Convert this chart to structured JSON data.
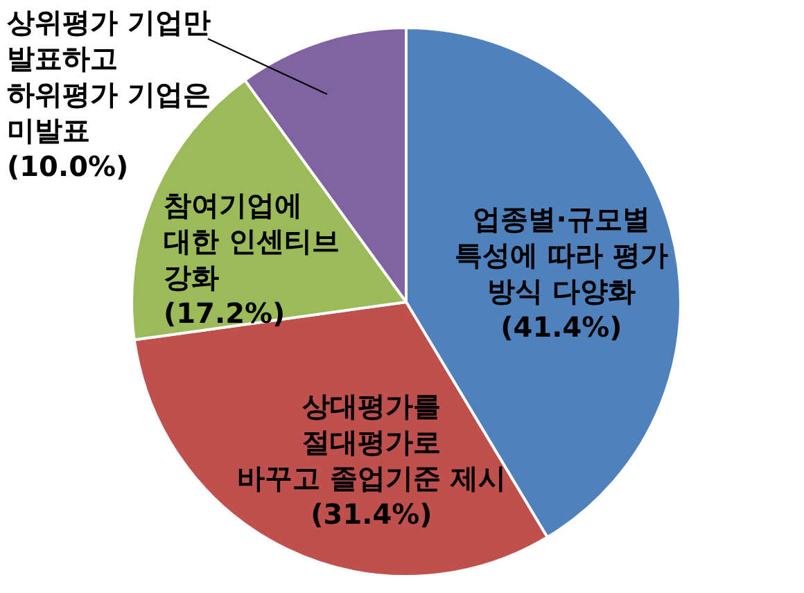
{
  "chart_data": {
    "type": "pie",
    "categories": [
      "업종별·규모별 특성에 따라 평가 방식 다양화",
      "상대평가를 절대평가로 바꾸고 졸업기준 제시",
      "참여기업에 대한 인센티브 강화",
      "상위평가 기업만 발표하고 하위평가 기업은 미발표"
    ],
    "values": [
      41.4,
      31.4,
      17.2,
      10.0
    ],
    "colors": [
      "#4f81bd",
      "#c0504d",
      "#9bbb59",
      "#8064a2"
    ],
    "value_labels": [
      "(41.4%)",
      "(31.4%)",
      "(17.2%)",
      "(10.0%)"
    ],
    "legend": false
  }
}
